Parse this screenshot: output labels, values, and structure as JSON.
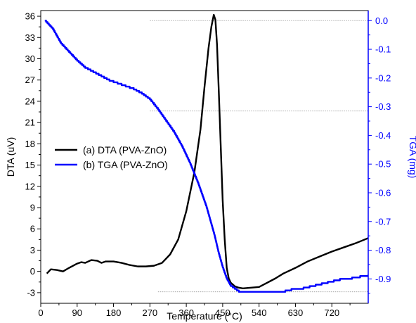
{
  "chart_data": {
    "type": "line",
    "xlabel": "Temperature (°C)",
    "y1label": "DTA (uV)",
    "y2label": "TGA (mg)",
    "xlim": [
      0,
      810
    ],
    "y1lim": [
      -4.5,
      36.8
    ],
    "y2lim": [
      -0.985,
      0.035
    ],
    "xticks": [
      "0",
      "90",
      "180",
      "270",
      "360",
      "450",
      "540",
      "630",
      "720"
    ],
    "y1ticks": [
      "-3",
      "0",
      "3",
      "6",
      "9",
      "12",
      "15",
      "18",
      "21",
      "24",
      "27",
      "30",
      "33",
      "36"
    ],
    "y2ticks": [
      "0.0",
      "-0.1",
      "-0.2",
      "-0.3",
      "-0.4",
      "-0.5",
      "-0.6",
      "-0.7",
      "-0.8",
      "-0.9"
    ],
    "legend_position": "middle-left",
    "series": [
      {
        "name": "(a) DTA (PVA-ZnO)",
        "axis": "left",
        "color": "#000000",
        "x": [
          15,
          25,
          40,
          55,
          70,
          90,
          100,
          110,
          125,
          140,
          150,
          160,
          180,
          200,
          220,
          240,
          260,
          280,
          300,
          320,
          340,
          360,
          380,
          395,
          405,
          415,
          422,
          428,
          432,
          436,
          440,
          445,
          450,
          455,
          460,
          465,
          470,
          480,
          490,
          500,
          520,
          540,
          560,
          580,
          600,
          630,
          660,
          690,
          720,
          750,
          780,
          810
        ],
        "y": [
          -0.3,
          0.3,
          0.2,
          0.0,
          0.5,
          1.1,
          1.3,
          1.2,
          1.6,
          1.5,
          1.2,
          1.4,
          1.4,
          1.2,
          0.9,
          0.7,
          0.7,
          0.8,
          1.2,
          2.4,
          4.5,
          8.5,
          14.0,
          20.0,
          26.0,
          31.5,
          34.5,
          36.2,
          35.5,
          32.0,
          26.0,
          18.0,
          10.0,
          4.5,
          0.5,
          -1.0,
          -1.6,
          -2.1,
          -2.3,
          -2.4,
          -2.3,
          -2.2,
          -1.6,
          -1.0,
          -0.3,
          0.5,
          1.4,
          2.1,
          2.8,
          3.4,
          4.0,
          4.7
        ]
      },
      {
        "name": "(b) TGA (PVA-ZnO)",
        "axis": "right",
        "color": "#0000ff",
        "x": [
          10,
          30,
          50,
          70,
          90,
          110,
          130,
          150,
          170,
          190,
          210,
          230,
          250,
          270,
          290,
          310,
          330,
          350,
          370,
          390,
          410,
          430,
          440,
          450,
          460,
          470,
          480,
          490,
          510,
          540,
          570,
          590,
          620,
          650,
          680,
          710,
          740,
          770,
          790,
          810
        ],
        "y": [
          0.0,
          -0.03,
          -0.08,
          -0.11,
          -0.14,
          -0.165,
          -0.18,
          -0.195,
          -0.21,
          -0.22,
          -0.23,
          -0.24,
          -0.255,
          -0.275,
          -0.31,
          -0.35,
          -0.39,
          -0.44,
          -0.5,
          -0.57,
          -0.65,
          -0.75,
          -0.81,
          -0.86,
          -0.9,
          -0.925,
          -0.935,
          -0.945,
          -0.945,
          -0.945,
          -0.945,
          -0.945,
          -0.935,
          -0.93,
          -0.92,
          -0.91,
          -0.9,
          -0.895,
          -0.89,
          -0.885
        ]
      }
    ],
    "reference_lines": [
      {
        "axis": "right",
        "y": 0.0,
        "x_from": 270,
        "x_to": 810
      },
      {
        "axis": "right",
        "y": -0.315,
        "x_from": 270,
        "x_to": 810
      },
      {
        "axis": "right",
        "y": -0.945,
        "x_from": 290,
        "x_to": 810
      }
    ],
    "colors": {
      "left_axis": "#000000",
      "right_axis": "#0000ff",
      "reference": "#999999"
    }
  }
}
